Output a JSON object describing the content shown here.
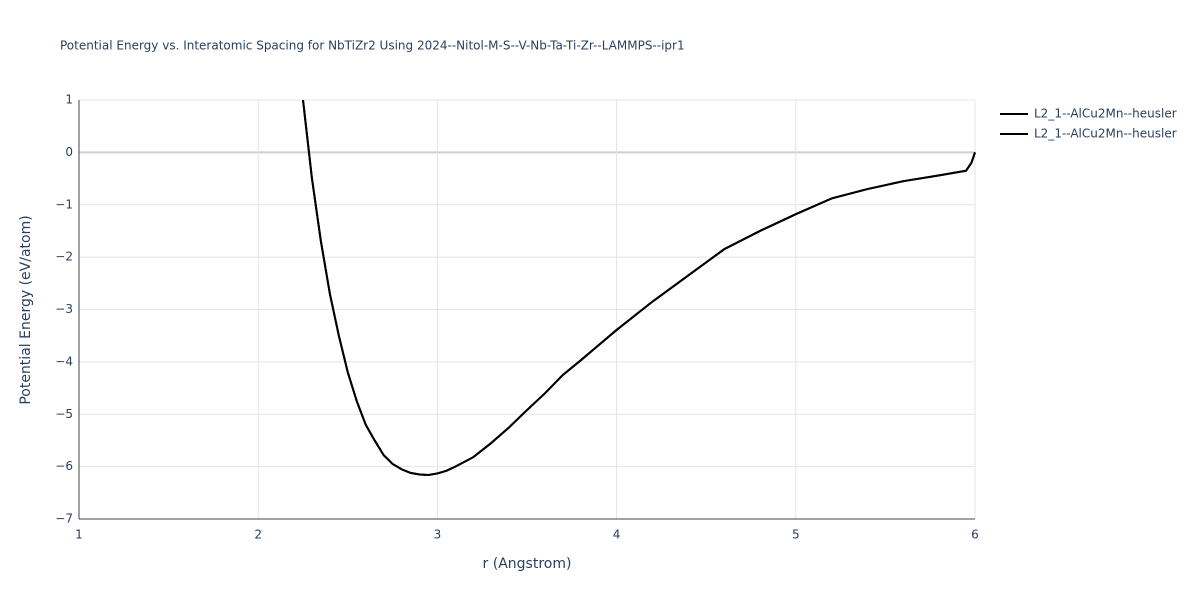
{
  "chart_data": {
    "type": "line",
    "title": "Potential Energy vs. Interatomic Spacing for NbTiZr2 Using 2024--Nitol-M-S--V-Nb-Ta-Ti-Zr--LAMMPS--ipr1",
    "x_label": "r (Angstrom)",
    "y_label": "Potential Energy (eV/atom)",
    "x": [
      2.25,
      2.3,
      2.35,
      2.4,
      2.45,
      2.5,
      2.55,
      2.6,
      2.65,
      2.7,
      2.75,
      2.8,
      2.85,
      2.9,
      2.95,
      3.0,
      3.05,
      3.1,
      3.2,
      3.3,
      3.4,
      3.5,
      3.6,
      3.7,
      3.8,
      3.9,
      4.0,
      4.2,
      4.4,
      4.6,
      4.8,
      5.0,
      5.2,
      5.4,
      5.6,
      5.8,
      5.95,
      5.98,
      6.0
    ],
    "series": [
      {
        "name": "L2_1--AlCu2Mn--heusler",
        "color": "#000000",
        "values": [
          1.0,
          -0.5,
          -1.7,
          -2.7,
          -3.5,
          -4.2,
          -4.75,
          -5.2,
          -5.5,
          -5.78,
          -5.95,
          -6.05,
          -6.12,
          -6.15,
          -6.16,
          -6.13,
          -6.08,
          -6.0,
          -5.82,
          -5.55,
          -5.25,
          -4.92,
          -4.6,
          -4.25,
          -3.97,
          -3.68,
          -3.39,
          -2.85,
          -2.35,
          -1.85,
          -1.5,
          -1.18,
          -0.88,
          -0.7,
          -0.55,
          -0.44,
          -0.35,
          -0.2,
          0.0
        ]
      },
      {
        "name": "L2_1--AlCu2Mn--heusler",
        "color": "#000000",
        "values": [
          1.0,
          -0.5,
          -1.7,
          -2.7,
          -3.5,
          -4.2,
          -4.75,
          -5.2,
          -5.5,
          -5.78,
          -5.95,
          -6.05,
          -6.12,
          -6.15,
          -6.16,
          -6.13,
          -6.08,
          -6.0,
          -5.82,
          -5.55,
          -5.25,
          -4.92,
          -4.6,
          -4.25,
          -3.97,
          -3.68,
          -3.39,
          -2.85,
          -2.35,
          -1.85,
          -1.5,
          -1.18,
          -0.88,
          -0.7,
          -0.55,
          -0.44,
          -0.35,
          -0.2,
          0.0
        ]
      }
    ],
    "xlim": [
      1,
      6
    ],
    "ylim": [
      -7,
      1
    ],
    "xticks": [
      1,
      2,
      3,
      4,
      5,
      6
    ],
    "yticks": [
      {
        "value": -7,
        "label": "−7"
      },
      {
        "value": -6,
        "label": "−6"
      },
      {
        "value": -5,
        "label": "−5"
      },
      {
        "value": -4,
        "label": "−4"
      },
      {
        "value": -3,
        "label": "−3"
      },
      {
        "value": -2,
        "label": "−2"
      },
      {
        "value": -1,
        "label": "−1"
      },
      0,
      1
    ],
    "grid": true,
    "legend": "right"
  }
}
